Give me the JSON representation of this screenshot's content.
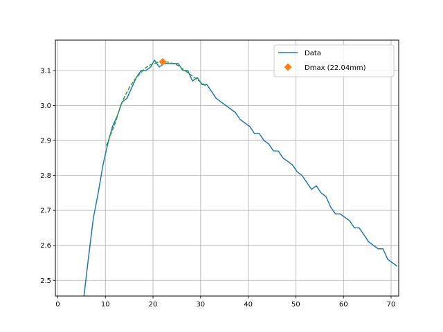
{
  "chart_data": {
    "type": "line",
    "title": "",
    "xlabel": "",
    "ylabel": "",
    "xlim": [
      -0.5,
      71.6
    ],
    "ylim": [
      2.455,
      3.187
    ],
    "xticks": [
      0,
      10,
      20,
      30,
      40,
      50,
      60,
      70
    ],
    "yticks": [
      2.5,
      2.6,
      2.7,
      2.8,
      2.9,
      3.0,
      3.1
    ],
    "grid": true,
    "legend_position": "upper-right",
    "series": [
      {
        "name": "Data",
        "color": "#1f77b4",
        "style": "solid",
        "x": [
          5.5,
          6.5,
          7.5,
          8.5,
          9.5,
          10.5,
          11.5,
          12.5,
          13.5,
          14.5,
          15.5,
          16.5,
          17.5,
          18.5,
          19.5,
          20.3,
          21.3,
          22.3,
          23.3,
          24.3,
          25.3,
          26.3,
          27.3,
          28.3,
          29.3,
          30.3,
          31.3,
          32.3,
          33.3,
          35.3,
          37.3,
          38.3,
          40.3,
          41.3,
          42.3,
          43.3,
          44.3,
          45.3,
          46.3,
          47.3,
          48.3,
          49.3,
          50.3,
          51.3,
          52.3,
          53.3,
          54.3,
          55.3,
          56.3,
          57.3,
          58.3,
          59.3,
          60.3,
          61.3,
          62.3,
          63.3,
          64.3,
          65.3,
          66.3,
          67.3,
          68.3,
          69.3,
          70.3,
          71.3
        ],
        "y": [
          2.455,
          2.57,
          2.68,
          2.75,
          2.83,
          2.89,
          2.94,
          2.97,
          3.01,
          3.02,
          3.05,
          3.08,
          3.1,
          3.1,
          3.11,
          3.13,
          3.11,
          3.12,
          3.12,
          3.12,
          3.12,
          3.1,
          3.1,
          3.07,
          3.08,
          3.06,
          3.06,
          3.04,
          3.02,
          3.0,
          2.98,
          2.96,
          2.94,
          2.92,
          2.92,
          2.9,
          2.89,
          2.87,
          2.87,
          2.85,
          2.84,
          2.83,
          2.81,
          2.8,
          2.78,
          2.76,
          2.77,
          2.75,
          2.74,
          2.71,
          2.69,
          2.69,
          2.68,
          2.67,
          2.65,
          2.65,
          2.63,
          2.61,
          2.6,
          2.59,
          2.59,
          2.56,
          2.55,
          2.54
        ]
      },
      {
        "name": "",
        "color": "#2ca02c",
        "style": "dashed",
        "x": [
          10.2,
          11.2,
          12.2,
          13.2,
          14.2,
          15.2,
          16.2,
          17.2,
          18.2,
          19.2,
          20.2,
          21.2,
          22.2,
          23.2,
          24.2,
          25.2,
          26.2,
          27.2,
          28.2,
          29.2,
          30.2,
          31.2
        ],
        "y": [
          2.885,
          2.92,
          2.955,
          3.0,
          3.03,
          3.055,
          3.075,
          3.09,
          3.105,
          3.115,
          3.12,
          3.124,
          3.125,
          3.124,
          3.12,
          3.115,
          3.105,
          3.095,
          3.085,
          3.075,
          3.065,
          3.055
        ]
      }
    ],
    "markers": [
      {
        "name": "Dmax (22.04mm)",
        "x": 22.04,
        "y": 3.125,
        "color": "#ff7f0e",
        "shape": "diamond"
      }
    ]
  }
}
